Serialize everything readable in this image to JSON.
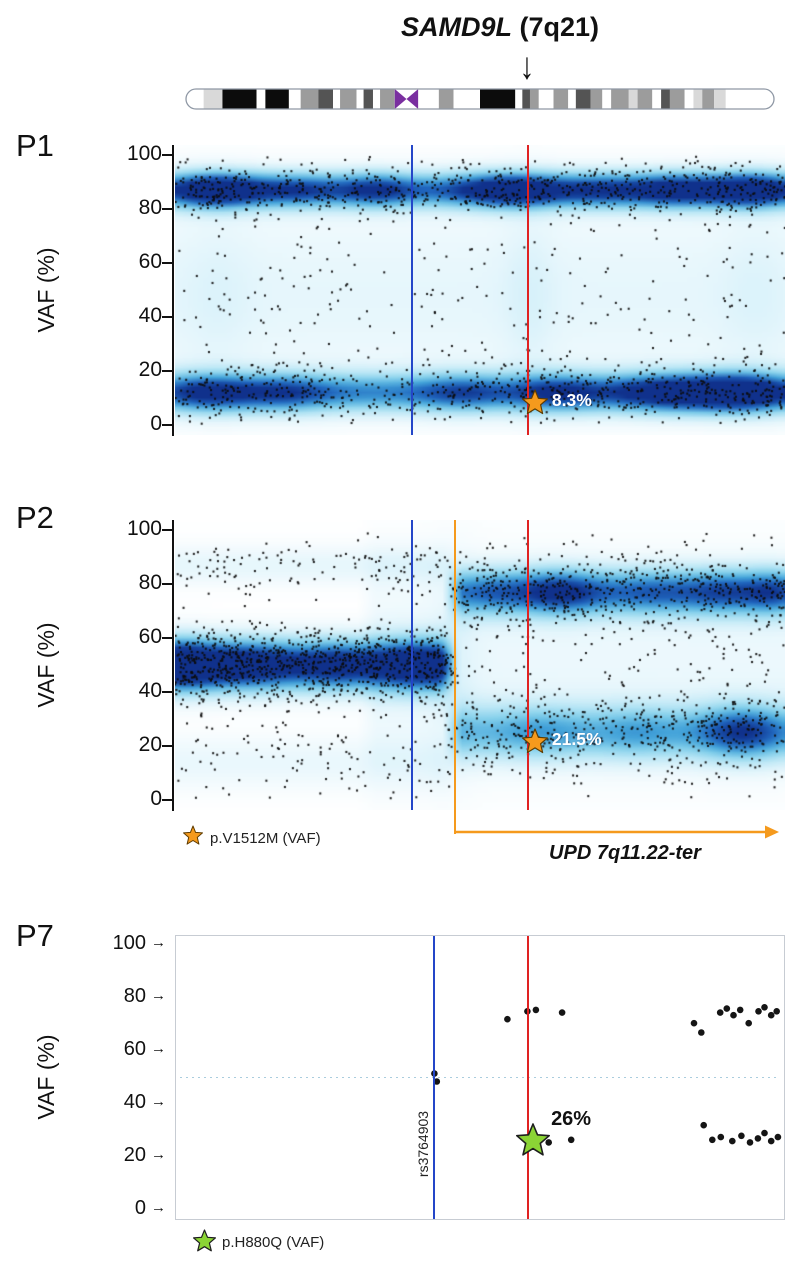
{
  "figure": {
    "title_gene": "SAMD9L",
    "title_locus": " (7q21)",
    "arrow_icon": "↓",
    "tick_arrow": "→"
  },
  "colors": {
    "blue_line": "#2446c8",
    "red_line": "#e02222",
    "orange": "#F59A1D",
    "green": "#8BD435",
    "dot": "#151515",
    "band_W": "#ffffff",
    "band_L": "#d9d9d9",
    "band_G": "#9c9c9c",
    "band_D": "#545454",
    "band_B": "#0c0c0c",
    "centromere": "#7a2fa0"
  },
  "ideogram": {
    "bands": [
      [
        "W",
        0.03
      ],
      [
        "L",
        0.032
      ],
      [
        "B",
        0.058
      ],
      [
        "W",
        0.015
      ],
      [
        "B",
        0.04
      ],
      [
        "W",
        0.02
      ],
      [
        "G",
        0.03
      ],
      [
        "D",
        0.025
      ],
      [
        "W",
        0.012
      ],
      [
        "G",
        0.028
      ],
      [
        "W",
        0.012
      ],
      [
        "D",
        0.016
      ],
      [
        "W",
        0.012
      ],
      [
        "G",
        0.025
      ],
      [
        "P",
        0.04
      ],
      [
        "W",
        0.035
      ],
      [
        "G",
        0.025
      ],
      [
        "W",
        0.045
      ],
      [
        "B",
        0.06
      ],
      [
        "W",
        0.012
      ],
      [
        "D",
        0.013
      ],
      [
        "G",
        0.015
      ],
      [
        "W",
        0.025
      ],
      [
        "G",
        0.025
      ],
      [
        "W",
        0.013
      ],
      [
        "D",
        0.025
      ],
      [
        "G",
        0.02
      ],
      [
        "W",
        0.015
      ],
      [
        "G",
        0.03
      ],
      [
        "L",
        0.015
      ],
      [
        "G",
        0.025
      ],
      [
        "W",
        0.015
      ],
      [
        "D",
        0.015
      ],
      [
        "G",
        0.025
      ],
      [
        "W",
        0.015
      ],
      [
        "L",
        0.015
      ],
      [
        "G",
        0.02
      ],
      [
        "L",
        0.02
      ],
      [
        "W",
        0.082
      ]
    ]
  },
  "chart_data": {
    "type": "scatter",
    "panels": [
      {
        "id": "P1",
        "label": "P1",
        "subtype": "density_scatter",
        "ylabel": "VAF (%)",
        "yticks": [
          0,
          20,
          40,
          60,
          80,
          100
        ],
        "ylim": [
          0,
          100
        ],
        "blue_line_x": 0.389,
        "red_line_x": 0.579,
        "star": {
          "x": 0.59,
          "vaf": 8.3,
          "label": "8.3%"
        },
        "bands": [
          {
            "y": 87,
            "sd": 4.5,
            "amp": 0.75,
            "n": 750,
            "x0": 0,
            "x1": 1,
            "hot": [
              [
                0.07,
                0.05,
                0.9
              ],
              [
                0.2,
                0.05,
                0.35
              ],
              [
                0.33,
                0.04,
                0.45
              ],
              [
                0.55,
                0.06,
                0.85
              ],
              [
                0.7,
                0.05,
                0.4
              ],
              [
                0.82,
                0.05,
                0.65
              ],
              [
                0.94,
                0.05,
                0.85
              ]
            ]
          },
          {
            "y": 12,
            "sd": 5,
            "amp": 0.72,
            "n": 650,
            "x0": 0,
            "x1": 1,
            "hot": [
              [
                0.06,
                0.05,
                0.55
              ],
              [
                0.18,
                0.05,
                0.4
              ],
              [
                0.47,
                0.05,
                0.35
              ],
              [
                0.63,
                0.05,
                0.5
              ],
              [
                0.8,
                0.06,
                0.7
              ],
              [
                0.92,
                0.06,
                1.05
              ]
            ]
          },
          {
            "y": 48,
            "sd": 26,
            "amp": 0.13,
            "n": 320,
            "x0": 0,
            "x1": 1,
            "hot": [
              [
                0.58,
                0.03,
                0.5
              ],
              [
                0.07,
                0.04,
                0.35
              ],
              [
                0.95,
                0.04,
                0.35
              ]
            ]
          }
        ]
      },
      {
        "id": "P2",
        "label": "P2",
        "subtype": "density_scatter",
        "ylabel": "VAF (%)",
        "yticks": [
          0,
          20,
          40,
          60,
          80,
          100
        ],
        "ylim": [
          0,
          100
        ],
        "blue_line_x": 0.389,
        "red_line_x": 0.579,
        "star": {
          "x": 0.59,
          "vaf": 21.5,
          "label": "21.5%"
        },
        "upd": {
          "x": 0.459,
          "label": "UPD 7q11.22-ter"
        },
        "legend": {
          "text": "p.V1512M (VAF)"
        },
        "bands": [
          {
            "y": 50,
            "sd": 6.5,
            "amp": 0.88,
            "n": 900,
            "x0": 0,
            "x1": 0.465,
            "hot": [
              [
                0.01,
                0.05,
                0.85
              ],
              [
                0.13,
                0.05,
                0.45
              ],
              [
                0.27,
                0.05,
                0.4
              ],
              [
                0.4,
                0.04,
                0.5
              ]
            ]
          },
          {
            "y": 77,
            "sd": 6,
            "amp": 0.62,
            "n": 560,
            "x0": 0.44,
            "x1": 1,
            "hot": [
              [
                0.52,
                0.04,
                0.3
              ],
              [
                0.63,
                0.05,
                0.75
              ],
              [
                0.78,
                0.05,
                0.35
              ],
              [
                0.9,
                0.05,
                0.5
              ],
              [
                0.98,
                0.03,
                0.45
              ]
            ]
          },
          {
            "y": 25,
            "sd": 7,
            "amp": 0.5,
            "n": 430,
            "x0": 0.44,
            "x1": 1,
            "hot": [
              [
                0.6,
                0.05,
                0.3
              ],
              [
                0.76,
                0.05,
                0.3
              ],
              [
                0.93,
                0.05,
                1.0
              ]
            ]
          },
          {
            "y": 87,
            "sd": 5,
            "amp": 0.13,
            "n": 130,
            "x0": 0,
            "x1": 0.465,
            "hot": []
          },
          {
            "y": 14,
            "sd": 7,
            "amp": 0.11,
            "n": 110,
            "x0": 0,
            "x1": 0.465,
            "hot": []
          },
          {
            "y": 50,
            "sd": 28,
            "amp": 0.1,
            "n": 260,
            "x0": 0.3,
            "x1": 1,
            "hot": [
              [
                0.46,
                0.025,
                0.7
              ]
            ]
          }
        ]
      },
      {
        "id": "P7",
        "label": "P7",
        "subtype": "scatter",
        "ylabel": "VAF (%)",
        "yticks": [
          0,
          20,
          40,
          60,
          80,
          100
        ],
        "ylim": [
          0,
          100
        ],
        "blue_line_x": 0.425,
        "red_line_x": 0.579,
        "gridline_vaf": 50,
        "star": {
          "x": 0.587,
          "vaf": 26,
          "label": "26%"
        },
        "rs_label": "rs3764903",
        "legend": {
          "text": "p.H880Q (VAF)"
        },
        "points": [
          [
            0.425,
            51.5
          ],
          [
            0.429,
            48.5
          ],
          [
            0.545,
            72
          ],
          [
            0.578,
            75
          ],
          [
            0.592,
            75.5
          ],
          [
            0.635,
            74.5
          ],
          [
            0.613,
            25.5
          ],
          [
            0.65,
            26.5
          ],
          [
            0.852,
            70.5
          ],
          [
            0.864,
            67
          ],
          [
            0.895,
            74.5
          ],
          [
            0.906,
            76
          ],
          [
            0.917,
            73.5
          ],
          [
            0.928,
            75.5
          ],
          [
            0.942,
            70.5
          ],
          [
            0.958,
            75
          ],
          [
            0.968,
            76.5
          ],
          [
            0.979,
            73.5
          ],
          [
            0.988,
            75
          ],
          [
            0.868,
            32
          ],
          [
            0.882,
            26.5
          ],
          [
            0.896,
            27.5
          ],
          [
            0.915,
            26
          ],
          [
            0.93,
            28
          ],
          [
            0.944,
            25.5
          ],
          [
            0.957,
            27
          ],
          [
            0.968,
            29
          ],
          [
            0.979,
            26
          ],
          [
            0.99,
            27.5
          ]
        ]
      }
    ]
  }
}
